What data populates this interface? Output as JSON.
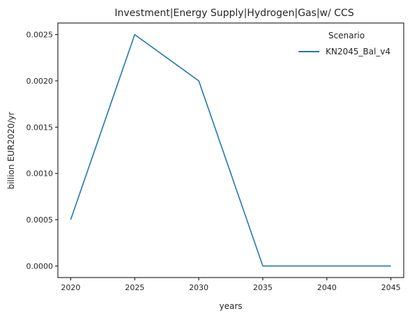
{
  "chart_data": {
    "type": "line",
    "title": "Investment|Energy Supply|Hydrogen|Gas|w/ CCS",
    "xlabel": "years",
    "ylabel": "billion EUR2020/yr",
    "x": [
      2020,
      2025,
      2030,
      2035,
      2040,
      2045
    ],
    "xlim": [
      2019,
      2046
    ],
    "ylim": [
      -0.000125,
      0.002625
    ],
    "xticks": [
      "2020",
      "2025",
      "2030",
      "2035",
      "2040",
      "2045"
    ],
    "yticks": [
      "0.0000",
      "0.0005",
      "0.0010",
      "0.0015",
      "0.0020",
      "0.0025"
    ],
    "grid": false,
    "legend": {
      "title": "Scenario",
      "placement": "top-right"
    },
    "series": [
      {
        "name": "KN2045_Bal_v4",
        "color": "#1f77b4",
        "values": [
          0.0005,
          0.0025,
          0.002,
          0.0,
          0.0,
          0.0
        ]
      }
    ]
  }
}
